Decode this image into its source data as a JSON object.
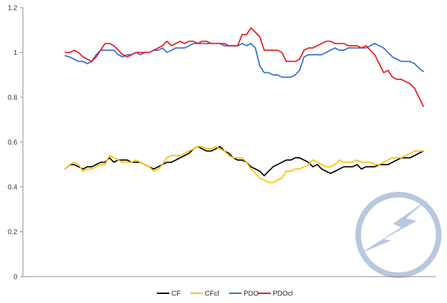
{
  "chart_data": {
    "type": "line",
    "ylim": [
      0,
      1.2
    ],
    "y_ticks": [
      "0",
      "0.2",
      "0.4",
      "0.6",
      "0.8",
      "1",
      "1.2"
    ],
    "grid": false,
    "legend_placement": "bottom",
    "n_points": 82,
    "series": [
      {
        "name": "CF",
        "color": "#000000",
        "values": [
          0.48,
          0.5,
          0.5,
          0.49,
          0.48,
          0.49,
          0.49,
          0.5,
          0.51,
          0.51,
          0.53,
          0.51,
          0.52,
          0.52,
          0.52,
          0.51,
          0.51,
          0.51,
          0.5,
          0.49,
          0.48,
          0.49,
          0.5,
          0.51,
          0.51,
          0.52,
          0.53,
          0.54,
          0.55,
          0.57,
          0.58,
          0.57,
          0.56,
          0.56,
          0.57,
          0.58,
          0.56,
          0.55,
          0.53,
          0.52,
          0.52,
          0.51,
          0.49,
          0.48,
          0.47,
          0.45,
          0.47,
          0.49,
          0.5,
          0.51,
          0.52,
          0.52,
          0.53,
          0.53,
          0.52,
          0.51,
          0.49,
          0.5,
          0.48,
          0.47,
          0.46,
          0.47,
          0.48,
          0.49,
          0.49,
          0.49,
          0.5,
          0.48,
          0.49,
          0.49,
          0.49,
          0.5,
          0.5,
          0.5,
          0.51,
          0.52,
          0.53,
          0.53,
          0.53,
          0.54,
          0.55,
          0.56
        ]
      },
      {
        "name": "CFcl",
        "color": "#ffc000",
        "values": [
          0.48,
          0.5,
          0.51,
          0.5,
          0.47,
          0.48,
          0.48,
          0.49,
          0.5,
          0.5,
          0.54,
          0.53,
          0.52,
          0.51,
          0.51,
          0.51,
          0.52,
          0.51,
          0.5,
          0.49,
          0.47,
          0.48,
          0.5,
          0.53,
          0.54,
          0.54,
          0.54,
          0.55,
          0.56,
          0.57,
          0.58,
          0.58,
          0.57,
          0.57,
          0.58,
          0.57,
          0.56,
          0.54,
          0.53,
          0.53,
          0.53,
          0.51,
          0.48,
          0.46,
          0.44,
          0.43,
          0.42,
          0.42,
          0.43,
          0.44,
          0.47,
          0.47,
          0.48,
          0.48,
          0.49,
          0.5,
          0.52,
          0.51,
          0.5,
          0.49,
          0.49,
          0.5,
          0.52,
          0.51,
          0.51,
          0.51,
          0.52,
          0.51,
          0.51,
          0.51,
          0.5,
          0.5,
          0.51,
          0.52,
          0.53,
          0.53,
          0.53,
          0.54,
          0.55,
          0.56,
          0.56,
          0.56
        ]
      },
      {
        "name": "PDO",
        "color": "#2e6fd8",
        "values": [
          0.985,
          0.98,
          0.97,
          0.96,
          0.96,
          0.95,
          0.96,
          0.99,
          1.01,
          1.01,
          1.01,
          1.01,
          0.99,
          0.98,
          0.99,
          0.99,
          1.0,
          0.99,
          1.0,
          1.0,
          1.01,
          1.01,
          1.02,
          1.0,
          1.01,
          1.02,
          1.02,
          1.02,
          1.03,
          1.04,
          1.04,
          1.04,
          1.04,
          1.04,
          1.04,
          1.04,
          1.03,
          1.03,
          1.03,
          1.03,
          1.04,
          1.03,
          1.04,
          1.02,
          0.94,
          0.91,
          0.91,
          0.9,
          0.9,
          0.89,
          0.89,
          0.89,
          0.9,
          0.92,
          0.98,
          0.99,
          0.99,
          0.99,
          0.99,
          1.0,
          1.01,
          1.02,
          1.01,
          1.01,
          1.02,
          1.02,
          1.02,
          1.02,
          1.02,
          1.03,
          1.04,
          1.03,
          1.02,
          1.0,
          0.98,
          0.97,
          0.96,
          0.96,
          0.96,
          0.95,
          0.93,
          0.915
        ]
      },
      {
        "name": "PDOcl",
        "color": "#e8191f",
        "values": [
          1.0,
          1.0,
          1.01,
          1.0,
          0.98,
          0.97,
          0.96,
          0.98,
          1.01,
          1.04,
          1.04,
          1.03,
          1.01,
          0.99,
          0.98,
          0.99,
          1.0,
          1.0,
          1.0,
          1.0,
          1.01,
          1.02,
          1.03,
          1.05,
          1.03,
          1.04,
          1.05,
          1.04,
          1.05,
          1.05,
          1.04,
          1.05,
          1.05,
          1.04,
          1.04,
          1.04,
          1.04,
          1.03,
          1.03,
          1.03,
          1.08,
          1.08,
          1.11,
          1.09,
          1.07,
          1.01,
          1.01,
          1.01,
          1.01,
          1.0,
          0.96,
          0.96,
          0.96,
          0.97,
          1.01,
          1.02,
          1.02,
          1.03,
          1.04,
          1.05,
          1.05,
          1.04,
          1.04,
          1.04,
          1.03,
          1.03,
          1.03,
          1.02,
          1.03,
          1.01,
          0.99,
          0.95,
          0.91,
          0.92,
          0.89,
          0.88,
          0.88,
          0.87,
          0.86,
          0.84,
          0.8,
          0.76
        ]
      }
    ]
  },
  "logo": {
    "name": "lightning-bolt-logo",
    "color": "#b8c8e0"
  }
}
